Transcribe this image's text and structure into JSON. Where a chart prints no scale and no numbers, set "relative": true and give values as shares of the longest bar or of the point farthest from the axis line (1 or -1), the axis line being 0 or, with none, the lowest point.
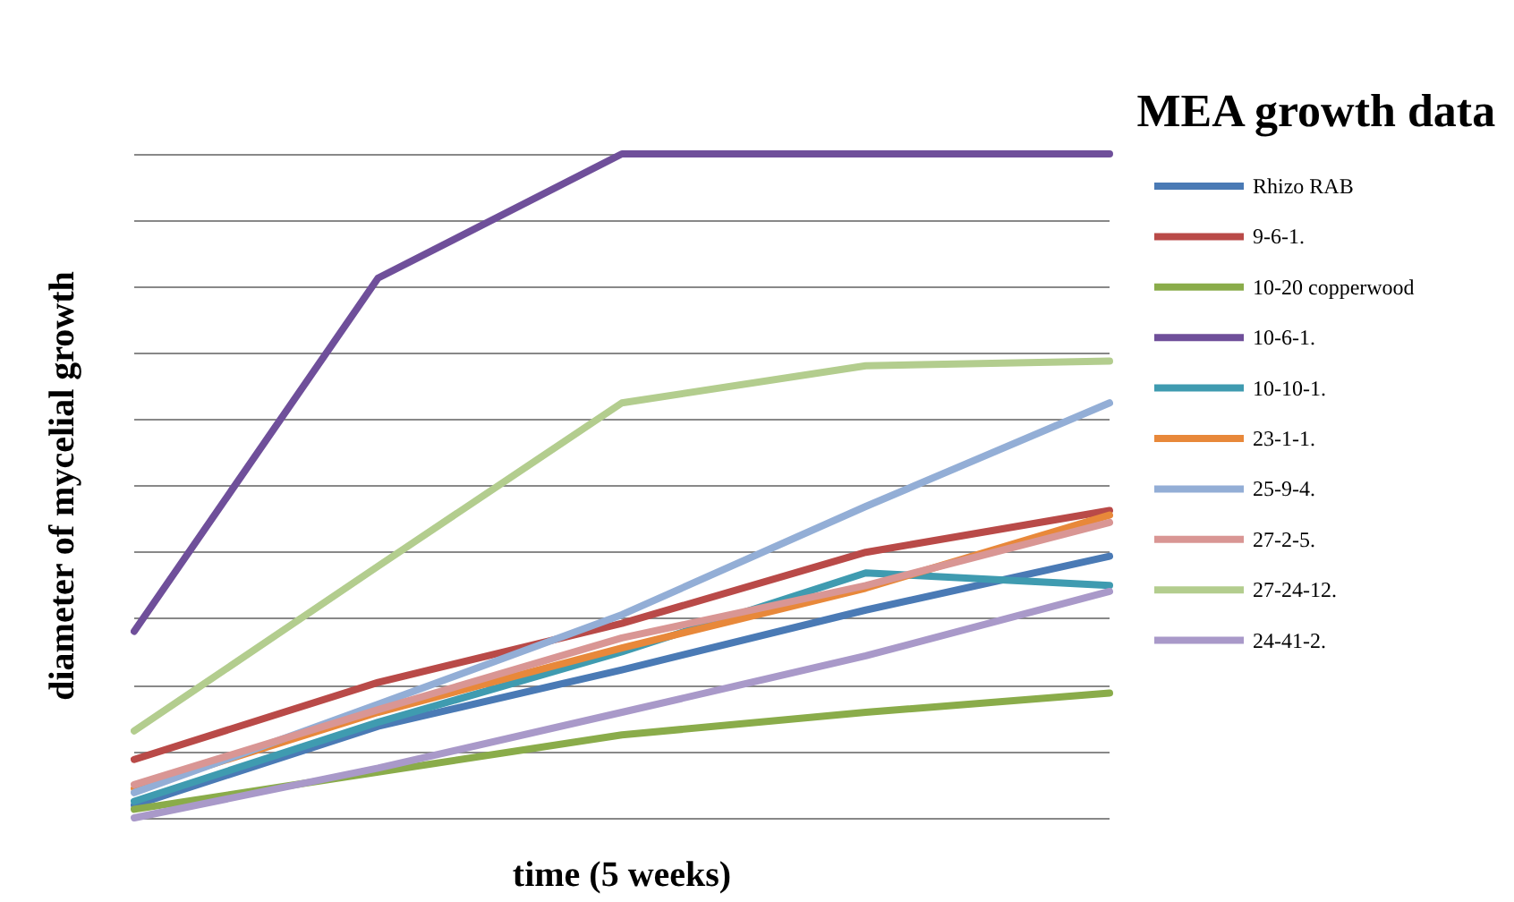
{
  "chart_data": {
    "type": "line",
    "title": "MEA growth data",
    "xlabel": "time (5 weeks)",
    "ylabel": "diameter of mycelial growth",
    "categories": [
      null,
      null,
      null,
      null,
      null
    ],
    "relative": true,
    "grid": "y",
    "legend": "right",
    "marker": "none",
    "line_style": "solid",
    "series": [
      {
        "name": "Rhizo RAB",
        "color": "#4a7ab5",
        "values": [
          0.019,
          0.138,
          0.223,
          0.313,
          0.394
        ]
      },
      {
        "name": "9-6-1.",
        "color": "#b94a48",
        "values": [
          0.088,
          0.204,
          0.293,
          0.4,
          0.463
        ]
      },
      {
        "name": "10-20 copperwood",
        "color": "#8aac4a",
        "values": [
          0.013,
          0.069,
          0.125,
          0.159,
          0.188
        ]
      },
      {
        "name": "10-6-1.",
        "color": "#6f4f9a",
        "values": [
          0.281,
          0.813,
          1,
          1,
          1
        ]
      },
      {
        "name": "10-10-1.",
        "color": "#3f9bb0",
        "values": [
          0.025,
          0.144,
          0.25,
          0.369,
          0.35
        ]
      },
      {
        "name": "23-1-1.",
        "color": "#e8883a",
        "values": [
          0.044,
          0.159,
          0.256,
          0.346,
          0.456
        ]
      },
      {
        "name": "25-9-4.",
        "color": "#93aed6",
        "values": [
          0.038,
          0.171,
          0.306,
          0.469,
          0.625
        ]
      },
      {
        "name": "27-2-5.",
        "color": "#d99694",
        "values": [
          0.05,
          0.163,
          0.271,
          0.35,
          0.445
        ]
      },
      {
        "name": "27-24-12.",
        "color": "#b3cd8e",
        "values": [
          0.131,
          0.379,
          0.625,
          0.681,
          0.688
        ]
      },
      {
        "name": "24-41-2.",
        "color": "#a999c9",
        "values": [
          0,
          0.075,
          0.159,
          0.244,
          0.341
        ]
      }
    ]
  }
}
